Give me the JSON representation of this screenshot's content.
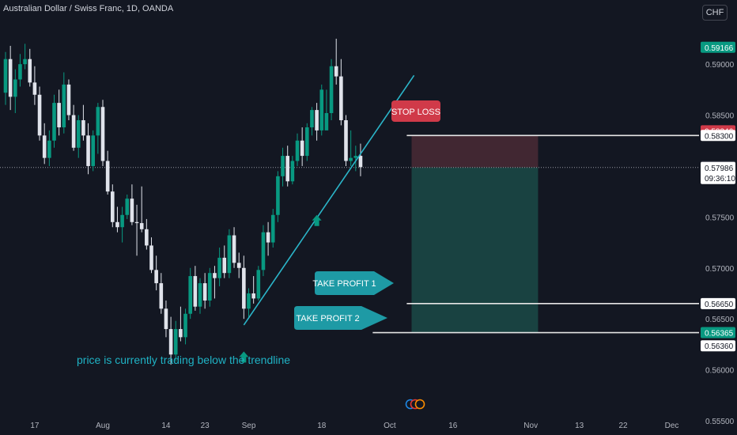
{
  "header": {
    "symbol_title": "Australian Dollar / Swiss Franc, 1D, OANDA",
    "currency_button": "CHF"
  },
  "annotations": {
    "stop_loss": "STOP LOSS",
    "take_profit_1": "TAKE PROFIT 1",
    "take_profit_2": "TAKE PROFIT 2",
    "trendline_note": "price is currently trading below the trendline"
  },
  "colors": {
    "background": "#131722",
    "bull": "#089981",
    "bear": "#e0e3eb",
    "stop_zone": "#4a2a35",
    "target_zone": "#1b4a47",
    "stop_badge": "#d03a49",
    "tp_badge": "#1e9aa5",
    "trendline": "#2bb5c9",
    "note_text": "#1fb2c4",
    "arrow": "#089981"
  },
  "chart_data": {
    "type": "candlestick",
    "title": "Australian Dollar / Swiss Franc, 1D, OANDA",
    "ylim": [
      0.5536,
      0.5963
    ],
    "y_ticks": [
      0.555,
      0.56,
      0.565,
      0.57,
      0.575,
      0.58,
      0.585,
      0.59
    ],
    "y_tick_labels": [
      "0.55500",
      "0.56000",
      "0.56500",
      "0.57000",
      "0.57500",
      "0.58000",
      "0.58500",
      "0.59000"
    ],
    "x_tick_labels": [
      "17",
      "Aug",
      "14",
      "23",
      "Sep",
      "18",
      "Oct",
      "16",
      "Nov",
      "13",
      "22",
      "Dec"
    ],
    "x_tick_index": [
      6,
      20,
      33,
      41,
      50,
      65,
      79,
      92,
      108,
      118,
      127,
      137
    ],
    "candles": [
      [
        0.5872,
        0.5912,
        0.586,
        0.5905
      ],
      [
        0.5905,
        0.5918,
        0.5855,
        0.5868
      ],
      [
        0.5868,
        0.5895,
        0.5852,
        0.5885
      ],
      [
        0.5885,
        0.591,
        0.5878,
        0.59
      ],
      [
        0.59,
        0.592,
        0.5895,
        0.5905
      ],
      [
        0.5905,
        0.5915,
        0.5878,
        0.5882
      ],
      [
        0.5882,
        0.5898,
        0.586,
        0.587
      ],
      [
        0.587,
        0.5878,
        0.5825,
        0.583
      ],
      [
        0.583,
        0.5842,
        0.5802,
        0.5808
      ],
      [
        0.5808,
        0.5835,
        0.58,
        0.5825
      ],
      [
        0.5825,
        0.587,
        0.5818,
        0.5862
      ],
      [
        0.5862,
        0.5875,
        0.583,
        0.5838
      ],
      [
        0.5838,
        0.5892,
        0.5832,
        0.588
      ],
      [
        0.588,
        0.5885,
        0.5845,
        0.585
      ],
      [
        0.585,
        0.586,
        0.5815,
        0.5818
      ],
      [
        0.5818,
        0.585,
        0.5808,
        0.5845
      ],
      [
        0.5845,
        0.586,
        0.5825,
        0.583
      ],
      [
        0.583,
        0.5842,
        0.5792,
        0.58
      ],
      [
        0.58,
        0.5835,
        0.5795,
        0.583
      ],
      [
        0.583,
        0.5862,
        0.5812,
        0.5858
      ],
      [
        0.5858,
        0.5865,
        0.58,
        0.5805
      ],
      [
        0.5805,
        0.5815,
        0.5772,
        0.5775
      ],
      [
        0.5775,
        0.5782,
        0.574,
        0.5745
      ],
      [
        0.5745,
        0.576,
        0.5735,
        0.574
      ],
      [
        0.574,
        0.576,
        0.5725,
        0.5752
      ],
      [
        0.5752,
        0.5772,
        0.5748,
        0.5768
      ],
      [
        0.5768,
        0.5782,
        0.5742,
        0.5745
      ],
      [
        0.5745,
        0.5762,
        0.5712,
        0.5744
      ],
      [
        0.5744,
        0.578,
        0.5735,
        0.5738
      ],
      [
        0.5738,
        0.5748,
        0.5718,
        0.5722
      ],
      [
        0.5722,
        0.573,
        0.5695,
        0.5698
      ],
      [
        0.5698,
        0.5712,
        0.5678,
        0.5685
      ],
      [
        0.5685,
        0.5695,
        0.5655,
        0.566
      ],
      [
        0.566,
        0.5668,
        0.5632,
        0.564
      ],
      [
        0.564,
        0.5652,
        0.5605,
        0.5615
      ],
      [
        0.5615,
        0.5648,
        0.5608,
        0.564
      ],
      [
        0.564,
        0.5662,
        0.5628,
        0.5632
      ],
      [
        0.5632,
        0.566,
        0.5625,
        0.5655
      ],
      [
        0.5655,
        0.57,
        0.565,
        0.5692
      ],
      [
        0.5692,
        0.5702,
        0.5658,
        0.5662
      ],
      [
        0.5662,
        0.569,
        0.5655,
        0.5685
      ],
      [
        0.5685,
        0.5695,
        0.566,
        0.5668
      ],
      [
        0.5668,
        0.57,
        0.5662,
        0.5695
      ],
      [
        0.5695,
        0.5702,
        0.567,
        0.569
      ],
      [
        0.569,
        0.572,
        0.5682,
        0.571
      ],
      [
        0.571,
        0.5722,
        0.569,
        0.5695
      ],
      [
        0.5695,
        0.5738,
        0.569,
        0.5732
      ],
      [
        0.5732,
        0.574,
        0.57,
        0.5705
      ],
      [
        0.5705,
        0.5715,
        0.569,
        0.57
      ],
      [
        0.57,
        0.5712,
        0.565,
        0.566
      ],
      [
        0.566,
        0.568,
        0.5652,
        0.5675
      ],
      [
        0.5675,
        0.5692,
        0.5665,
        0.567
      ],
      [
        0.567,
        0.5702,
        0.5668,
        0.5698
      ],
      [
        0.5698,
        0.5742,
        0.5692,
        0.5735
      ],
      [
        0.5735,
        0.5745,
        0.5712,
        0.5725
      ],
      [
        0.5725,
        0.5758,
        0.572,
        0.5752
      ],
      [
        0.5752,
        0.5795,
        0.5745,
        0.579
      ],
      [
        0.579,
        0.5818,
        0.578,
        0.581
      ],
      [
        0.581,
        0.582,
        0.578,
        0.5785
      ],
      [
        0.5785,
        0.581,
        0.5782,
        0.5805
      ],
      [
        0.5805,
        0.5832,
        0.58,
        0.5825
      ],
      [
        0.5825,
        0.5838,
        0.58,
        0.581
      ],
      [
        0.581,
        0.5842,
        0.5805,
        0.5838
      ],
      [
        0.5838,
        0.5858,
        0.583,
        0.5855
      ],
      [
        0.5855,
        0.5862,
        0.5825,
        0.5835
      ],
      [
        0.5835,
        0.588,
        0.583,
        0.5875
      ],
      [
        0.5835,
        0.5875,
        0.5838,
        0.5852
      ],
      [
        0.5852,
        0.5905,
        0.5845,
        0.5898
      ],
      [
        0.5898,
        0.5925,
        0.588,
        0.5888
      ],
      [
        0.5888,
        0.5905,
        0.584,
        0.5845
      ],
      [
        0.5845,
        0.585,
        0.58,
        0.5805
      ],
      [
        0.5805,
        0.5835,
        0.58,
        0.5808
      ],
      [
        0.5808,
        0.582,
        0.5795,
        0.581
      ],
      [
        0.581,
        0.5822,
        0.579,
        0.5799
      ]
    ],
    "trade_levels": {
      "stop_loss": 0.583,
      "entry": 0.57986,
      "take_profit_1": 0.5665,
      "take_profit_2": 0.56365
    },
    "price_labels": [
      {
        "value": 0.59166,
        "text": "0.59166",
        "style": "green"
      },
      {
        "value": 0.58346,
        "text": "0.58346",
        "style": "red"
      },
      {
        "value": 0.583,
        "text": "0.58300",
        "style": "white"
      },
      {
        "value": 0.57995,
        "text": "0.57995",
        "style": "gray"
      },
      {
        "value": 0.57986,
        "text": "0.57986",
        "style": "white",
        "sub": "09:36:10"
      },
      {
        "value": 0.5665,
        "text": "0.56650",
        "style": "white"
      },
      {
        "value": 0.56365,
        "text": "0.56365",
        "style": "green"
      },
      {
        "value": 0.5636,
        "text": "0.56360",
        "style": "white",
        "offset": 16
      }
    ],
    "trendline": {
      "from": [
        49,
        0.5644
      ],
      "to": [
        84,
        0.5889
      ]
    },
    "arrows_up": [
      [
        49,
        0.5618
      ],
      [
        64,
        0.5752
      ]
    ],
    "grid": false
  }
}
